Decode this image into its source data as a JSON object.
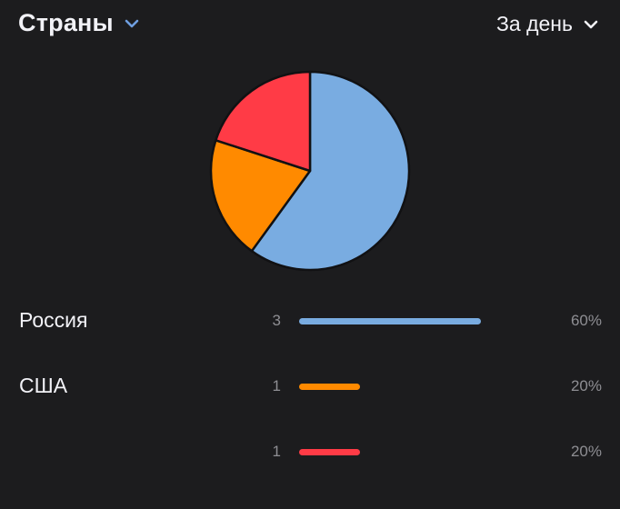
{
  "header": {
    "title": "Страны",
    "period": "За день"
  },
  "colors": {
    "background": "#1c1c1e",
    "accent": "#6f9fe0",
    "russia": "#79ace1",
    "usa": "#ff8a00",
    "other": "#ff3b46"
  },
  "rows": [
    {
      "label": "Россия",
      "count": "3",
      "percent": "60%",
      "share": 0.6,
      "color": "#79ace1"
    },
    {
      "label": "США",
      "count": "1",
      "percent": "20%",
      "share": 0.2,
      "color": "#ff8a00"
    },
    {
      "label": "",
      "count": "1",
      "percent": "20%",
      "share": 0.2,
      "color": "#ff3b46"
    }
  ],
  "chart_data": {
    "type": "pie",
    "categories": [
      "Россия",
      "США",
      ""
    ],
    "values": [
      3,
      1,
      1
    ],
    "colors": [
      "#79ace1",
      "#ff8a00",
      "#ff3b46"
    ]
  }
}
